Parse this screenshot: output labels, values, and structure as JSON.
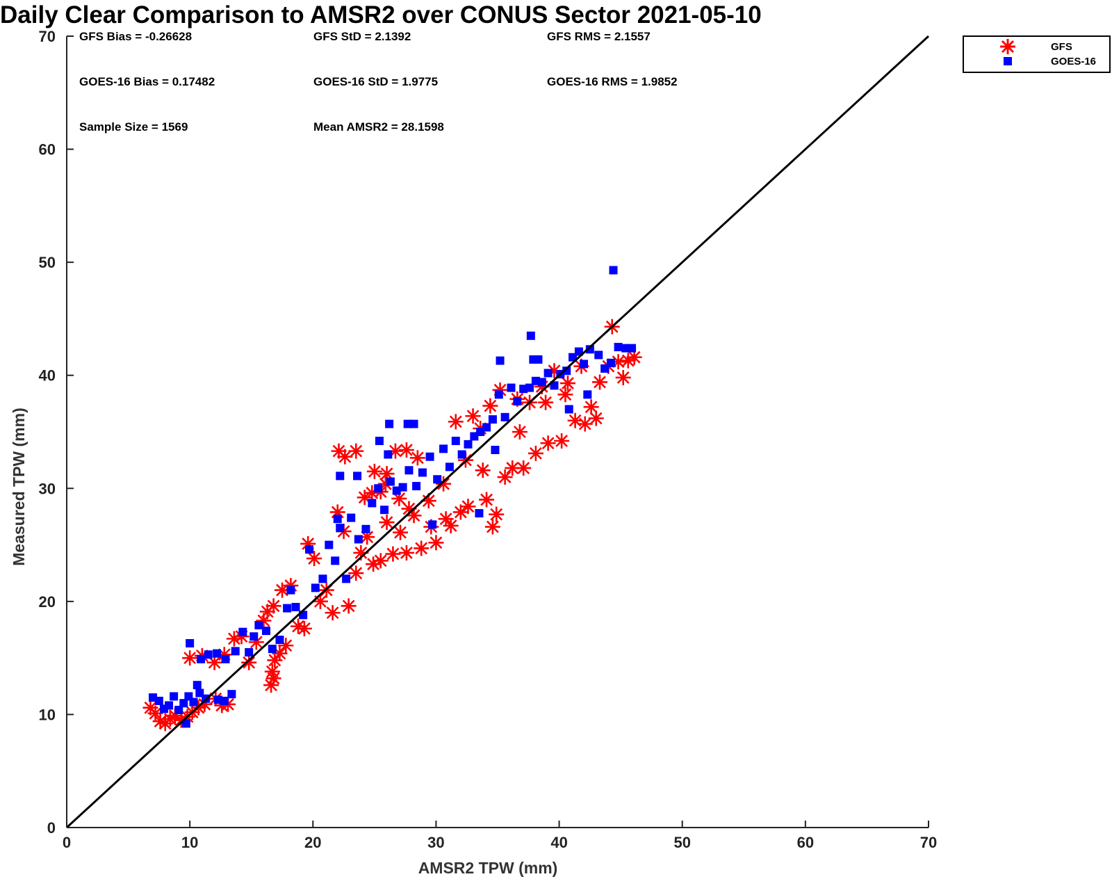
{
  "chart_data": {
    "type": "scatter",
    "title": "Daily Clear Comparison to AMSR2 over CONUS Sector 2021-05-10",
    "xlabel": "AMSR2 TPW (mm)",
    "ylabel": "Measured TPW (mm)",
    "xlim": [
      0,
      70
    ],
    "ylim": [
      0,
      70
    ],
    "xticks": [
      0,
      10,
      20,
      30,
      40,
      50,
      60,
      70
    ],
    "yticks": [
      0,
      10,
      20,
      30,
      40,
      50,
      60,
      70
    ],
    "reference_line": {
      "x": [
        0,
        70
      ],
      "y": [
        0,
        70
      ],
      "color": "#000000"
    },
    "legend": {
      "position": "outside-top-right",
      "entries": [
        "GFS",
        "GOES-16"
      ]
    },
    "stats": {
      "gfs_bias": "GFS Bias = -0.26628",
      "gfs_std": "GFS StD = 2.1392",
      "gfs_rms": "GFS RMS = 2.1557",
      "goes_bias": "GOES-16 Bias = 0.17482",
      "goes_std": "GOES-16 StD = 1.9775",
      "goes_rms": "GOES-16 RMS = 1.9852",
      "sample_size": "Sample Size = 1569",
      "mean_amsr2": "Mean AMSR2 = 28.1598"
    },
    "series": [
      {
        "name": "GFS",
        "marker": "asterisk",
        "color": "#ff0000",
        "points": [
          [
            6.8,
            10.6
          ],
          [
            7.2,
            10.1
          ],
          [
            7.6,
            9.4
          ],
          [
            8.0,
            9.2
          ],
          [
            8.4,
            9.6
          ],
          [
            8.8,
            9.9
          ],
          [
            9.3,
            9.5
          ],
          [
            9.8,
            9.8
          ],
          [
            10.2,
            10.2
          ],
          [
            10.7,
            10.6
          ],
          [
            11.2,
            10.9
          ],
          [
            12.1,
            11.4
          ],
          [
            12.6,
            10.8
          ],
          [
            13.1,
            10.9
          ],
          [
            10.0,
            15.0
          ],
          [
            11.0,
            15.2
          ],
          [
            12.0,
            14.6
          ],
          [
            12.8,
            15.3
          ],
          [
            13.6,
            16.7
          ],
          [
            14.2,
            16.9
          ],
          [
            14.8,
            14.6
          ],
          [
            15.4,
            16.4
          ],
          [
            16.0,
            18.3
          ],
          [
            16.6,
            12.6
          ],
          [
            16.8,
            13.2
          ],
          [
            16.7,
            13.8
          ],
          [
            16.9,
            14.8
          ],
          [
            17.3,
            15.4
          ],
          [
            17.8,
            16.1
          ],
          [
            16.3,
            19.1
          ],
          [
            16.8,
            19.6
          ],
          [
            17.5,
            21.0
          ],
          [
            18.2,
            21.4
          ],
          [
            18.8,
            17.8
          ],
          [
            19.3,
            17.6
          ],
          [
            19.6,
            25.1
          ],
          [
            20.1,
            23.8
          ],
          [
            20.6,
            20.0
          ],
          [
            21.1,
            21.0
          ],
          [
            21.6,
            19.0
          ],
          [
            22.0,
            27.9
          ],
          [
            22.5,
            26.2
          ],
          [
            22.9,
            19.6
          ],
          [
            23.5,
            22.5
          ],
          [
            23.9,
            24.3
          ],
          [
            24.4,
            25.7
          ],
          [
            24.9,
            23.3
          ],
          [
            25.5,
            23.6
          ],
          [
            26.0,
            27.0
          ],
          [
            26.5,
            24.2
          ],
          [
            27.1,
            26.1
          ],
          [
            27.6,
            24.3
          ],
          [
            22.1,
            33.3
          ],
          [
            22.6,
            32.8
          ],
          [
            23.5,
            33.3
          ],
          [
            25.0,
            31.5
          ],
          [
            26.0,
            31.3
          ],
          [
            26.7,
            33.3
          ],
          [
            27.6,
            33.4
          ],
          [
            28.5,
            32.7
          ],
          [
            25.5,
            29.7
          ],
          [
            28.2,
            27.6
          ],
          [
            28.8,
            24.7
          ],
          [
            29.4,
            28.9
          ],
          [
            30.0,
            25.2
          ],
          [
            30.6,
            30.4
          ],
          [
            31.2,
            26.7
          ],
          [
            31.6,
            35.9
          ],
          [
            32.0,
            27.9
          ],
          [
            32.6,
            28.4
          ],
          [
            33.0,
            36.4
          ],
          [
            33.6,
            35.3
          ],
          [
            34.1,
            29.0
          ],
          [
            34.4,
            37.3
          ],
          [
            34.6,
            26.6
          ],
          [
            34.9,
            27.7
          ],
          [
            35.2,
            38.7
          ],
          [
            35.6,
            31.0
          ],
          [
            36.2,
            31.8
          ],
          [
            36.6,
            37.9
          ],
          [
            37.1,
            31.8
          ],
          [
            37.6,
            37.6
          ],
          [
            38.1,
            33.1
          ],
          [
            38.6,
            39.0
          ],
          [
            39.1,
            34.0
          ],
          [
            39.6,
            40.4
          ],
          [
            40.2,
            34.2
          ],
          [
            40.7,
            39.3
          ],
          [
            41.3,
            36.0
          ],
          [
            41.8,
            40.8
          ],
          [
            42.1,
            35.7
          ],
          [
            42.6,
            37.2
          ],
          [
            43.0,
            36.2
          ],
          [
            44.0,
            40.8
          ],
          [
            44.3,
            44.3
          ],
          [
            44.8,
            41.2
          ],
          [
            45.2,
            39.8
          ],
          [
            45.6,
            41.3
          ],
          [
            46.1,
            41.6
          ],
          [
            24.2,
            29.2
          ],
          [
            24.8,
            29.6
          ],
          [
            25.9,
            30.4
          ],
          [
            27.0,
            29.1
          ],
          [
            27.8,
            28.2
          ],
          [
            29.6,
            26.6
          ],
          [
            30.8,
            27.3
          ],
          [
            32.4,
            32.5
          ],
          [
            33.8,
            31.6
          ],
          [
            36.8,
            35.0
          ],
          [
            38.9,
            37.6
          ],
          [
            40.5,
            38.3
          ],
          [
            43.3,
            39.4
          ]
        ]
      },
      {
        "name": "GOES-16",
        "marker": "square",
        "color": "#0000ff",
        "points": [
          [
            7.0,
            11.5
          ],
          [
            7.5,
            11.2
          ],
          [
            7.9,
            10.5
          ],
          [
            8.3,
            10.8
          ],
          [
            8.7,
            11.6
          ],
          [
            9.1,
            10.4
          ],
          [
            9.5,
            11.0
          ],
          [
            9.9,
            11.6
          ],
          [
            10.3,
            11.1
          ],
          [
            10.8,
            11.9
          ],
          [
            11.3,
            11.4
          ],
          [
            12.3,
            11.3
          ],
          [
            12.8,
            11.2
          ],
          [
            13.4,
            11.8
          ],
          [
            9.7,
            9.2
          ],
          [
            10.6,
            12.6
          ],
          [
            10.0,
            16.3
          ],
          [
            10.9,
            14.9
          ],
          [
            11.5,
            15.3
          ],
          [
            12.2,
            15.4
          ],
          [
            12.9,
            14.9
          ],
          [
            13.7,
            15.6
          ],
          [
            14.3,
            17.3
          ],
          [
            14.8,
            15.5
          ],
          [
            15.2,
            16.9
          ],
          [
            15.6,
            17.9
          ],
          [
            16.2,
            17.4
          ],
          [
            16.7,
            15.8
          ],
          [
            17.3,
            16.6
          ],
          [
            17.9,
            19.4
          ],
          [
            18.2,
            21.0
          ],
          [
            18.6,
            19.5
          ],
          [
            19.2,
            18.8
          ],
          [
            19.7,
            24.6
          ],
          [
            20.2,
            21.2
          ],
          [
            20.8,
            22.0
          ],
          [
            21.3,
            25.0
          ],
          [
            21.8,
            23.6
          ],
          [
            22.2,
            26.5
          ],
          [
            22.7,
            22.0
          ],
          [
            23.1,
            27.4
          ],
          [
            23.7,
            25.5
          ],
          [
            24.3,
            26.4
          ],
          [
            24.8,
            28.7
          ],
          [
            25.3,
            30.0
          ],
          [
            25.8,
            28.1
          ],
          [
            26.3,
            30.6
          ],
          [
            26.8,
            29.8
          ],
          [
            27.3,
            30.1
          ],
          [
            27.8,
            31.6
          ],
          [
            22.2,
            31.1
          ],
          [
            23.6,
            31.1
          ],
          [
            26.2,
            35.7
          ],
          [
            27.7,
            35.7
          ],
          [
            28.2,
            35.7
          ],
          [
            25.4,
            34.2
          ],
          [
            26.1,
            33.0
          ],
          [
            22.0,
            27.3
          ],
          [
            28.4,
            30.2
          ],
          [
            28.9,
            31.4
          ],
          [
            29.5,
            32.8
          ],
          [
            30.1,
            30.8
          ],
          [
            30.6,
            33.5
          ],
          [
            31.1,
            31.9
          ],
          [
            31.6,
            34.2
          ],
          [
            32.1,
            33.0
          ],
          [
            32.6,
            33.9
          ],
          [
            33.1,
            34.6
          ],
          [
            33.6,
            35.0
          ],
          [
            34.1,
            35.4
          ],
          [
            34.6,
            36.1
          ],
          [
            35.1,
            38.3
          ],
          [
            35.6,
            36.3
          ],
          [
            36.1,
            38.9
          ],
          [
            36.6,
            37.7
          ],
          [
            37.1,
            38.8
          ],
          [
            37.6,
            38.9
          ],
          [
            38.1,
            39.5
          ],
          [
            38.6,
            39.4
          ],
          [
            39.1,
            40.2
          ],
          [
            39.6,
            39.1
          ],
          [
            40.1,
            40.1
          ],
          [
            40.6,
            40.4
          ],
          [
            41.1,
            41.6
          ],
          [
            41.6,
            42.1
          ],
          [
            42.0,
            41.0
          ],
          [
            42.5,
            42.3
          ],
          [
            43.2,
            41.8
          ],
          [
            43.7,
            40.6
          ],
          [
            44.2,
            41.1
          ],
          [
            44.8,
            42.5
          ],
          [
            45.4,
            42.4
          ],
          [
            45.9,
            42.4
          ],
          [
            35.2,
            41.3
          ],
          [
            37.7,
            43.5
          ],
          [
            37.9,
            41.4
          ],
          [
            38.3,
            41.4
          ],
          [
            44.4,
            49.3
          ],
          [
            34.8,
            33.4
          ],
          [
            29.7,
            26.8
          ],
          [
            33.5,
            27.8
          ],
          [
            40.8,
            37.0
          ],
          [
            42.3,
            38.3
          ]
        ]
      }
    ]
  }
}
